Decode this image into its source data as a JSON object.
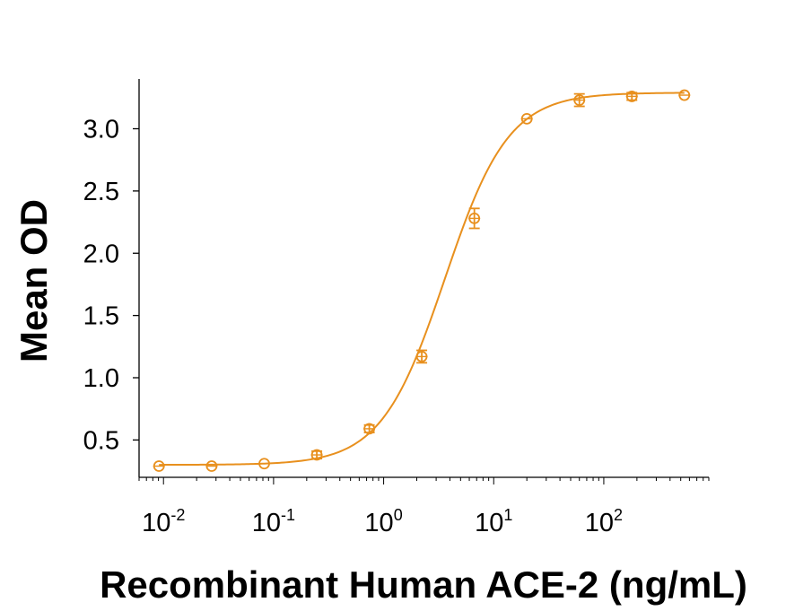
{
  "chart_data": {
    "type": "scatter",
    "title": "",
    "xlabel": "Recombinant Human ACE-2 (ng/mL)",
    "ylabel": "Mean OD",
    "xscale": "log",
    "xlim": [
      0.006,
      900
    ],
    "ylim": [
      0.2,
      3.4
    ],
    "x_ticks": [
      {
        "base": "10",
        "exp": "-2",
        "value": 0.01
      },
      {
        "base": "10",
        "exp": "-1",
        "value": 0.1
      },
      {
        "base": "10",
        "exp": "0",
        "value": 1
      },
      {
        "base": "10",
        "exp": "1",
        "value": 10
      },
      {
        "base": "10",
        "exp": "2",
        "value": 100
      }
    ],
    "y_ticks": [
      "0.5",
      "1.0",
      "1.5",
      "2.0",
      "2.5",
      "3.0"
    ],
    "grid": false,
    "legend": "none",
    "color": "#E8901E",
    "series": [
      {
        "x": [
          0.0091,
          0.0274,
          0.0823,
          0.247,
          0.741,
          2.22,
          6.67,
          20,
          60,
          180,
          540
        ],
        "y": [
          0.29,
          0.29,
          0.31,
          0.38,
          0.59,
          1.17,
          2.28,
          3.08,
          3.23,
          3.26,
          3.27
        ],
        "error": [
          0.02,
          0.02,
          0.02,
          0.03,
          0.03,
          0.05,
          0.08,
          0.02,
          0.05,
          0.03,
          0.02
        ]
      }
    ],
    "fit": {
      "model": "4PL",
      "bottom": 0.3,
      "top": 3.29,
      "ec50": 3.6,
      "hill": 1.5
    }
  }
}
